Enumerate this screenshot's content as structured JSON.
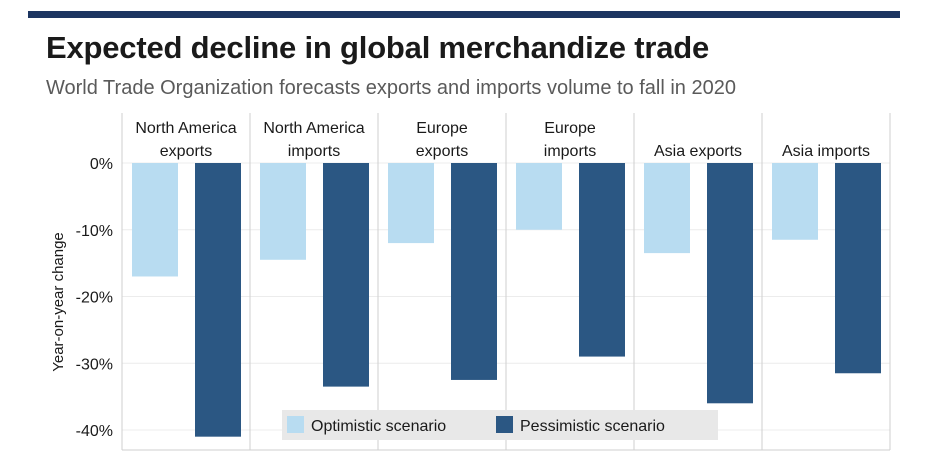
{
  "header": {
    "title": "Expected decline in global merchandize trade",
    "subtitle": "World Trade Organization forecasts exports and imports volume to fall in 2020"
  },
  "colors": {
    "top_bar": "#1c3561",
    "optimistic": "#b8dcf1",
    "pessimistic": "#2b5783",
    "legend_bg": "#e8e8e8"
  },
  "chart_data": {
    "type": "bar",
    "title": "Expected decline in global merchandize trade",
    "subtitle": "World Trade Organization forecasts exports and imports volume to fall in 2020",
    "ylabel": "Year-on-year change",
    "ylim": [
      -41,
      0
    ],
    "yticks": [
      0,
      -10,
      -20,
      -30,
      -40
    ],
    "ytick_labels": [
      "0%",
      "-10%",
      "-20%",
      "-30%",
      "-40%"
    ],
    "panels": [
      {
        "label_lines": [
          "North America",
          "exports"
        ]
      },
      {
        "label_lines": [
          "North America",
          "imports"
        ]
      },
      {
        "label_lines": [
          "Europe",
          "exports"
        ]
      },
      {
        "label_lines": [
          "Europe",
          "imports"
        ]
      },
      {
        "label_lines": [
          "Asia exports"
        ]
      },
      {
        "label_lines": [
          "Asia imports"
        ]
      }
    ],
    "series": [
      {
        "name": "Optimistic scenario",
        "values": [
          -17.0,
          -14.5,
          -12.0,
          -10.0,
          -13.5,
          -11.5
        ]
      },
      {
        "name": "Pessimistic scenario",
        "values": [
          -41.0,
          -33.5,
          -32.5,
          -29.0,
          -36.0,
          -31.5
        ]
      }
    ],
    "legend": {
      "position": "bottom-center"
    },
    "grid": true
  }
}
